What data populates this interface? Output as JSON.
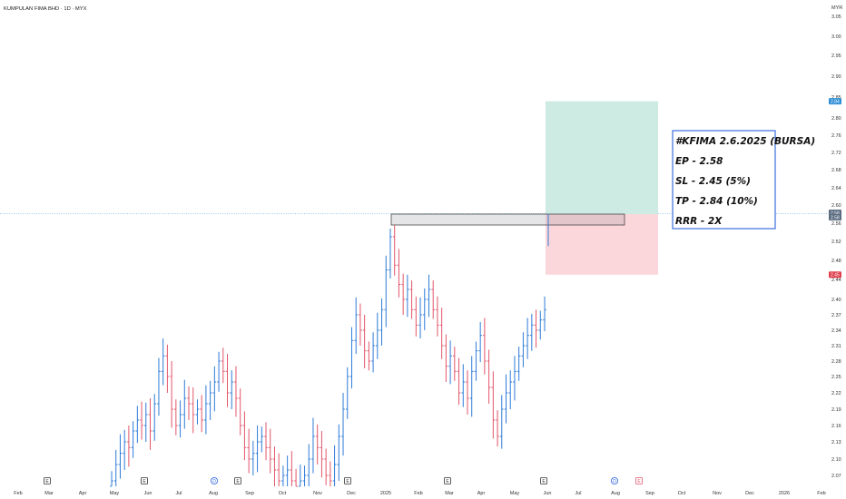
{
  "header": {
    "title": "KUMPULAN FIMA BHD · 1D · MYX"
  },
  "chart_data": {
    "type": "ohlc",
    "currency": "MYR",
    "y_ticks": [
      "3.05",
      "3.00",
      "2.95",
      "2.90",
      "2.85",
      "2.80",
      "2.76",
      "2.72",
      "2.68",
      "2.64",
      "2.60",
      "2.56",
      "2.52",
      "2.48",
      "2.44",
      "2.40",
      "2.37",
      "2.34",
      "2.31",
      "2.28",
      "2.25",
      "2.22",
      "2.19",
      "2.16",
      "2.13",
      "2.10",
      "2.07"
    ],
    "x_ticks": [
      "Feb",
      "Mar",
      "Apr",
      "May",
      "Jun",
      "Jul",
      "Aug",
      "Sep",
      "Oct",
      "Nov",
      "Dec",
      "2025",
      "Feb",
      "Mar",
      "Apr",
      "May",
      "Jun",
      "Jul",
      "Aug",
      "Sep",
      "Oct",
      "Nov",
      "Dec",
      "2026",
      "Feb"
    ],
    "ylim": [
      2.05,
      3.07
    ],
    "price_tags": [
      {
        "label": "2.84",
        "value": 2.84,
        "color": "#2f8fd6"
      },
      {
        "label": "2.58",
        "value": 2.583,
        "color": "#5b6b80"
      },
      {
        "label": "2.58",
        "value": 2.573,
        "color": "#5b6b80"
      },
      {
        "label": "2.45",
        "value": 2.45,
        "color": "#e0404e"
      }
    ],
    "position": {
      "entry": 2.58,
      "stop_loss": 2.45,
      "target": 2.84,
      "target_color": "#cdeae3",
      "stop_color": "#fbd6da"
    },
    "resistance_zone": {
      "top": 2.58,
      "bottom": 2.56,
      "start": "2025-01",
      "end": "2025-08"
    },
    "annotation": {
      "line1": "#KFIMA 2.6.2025 (BURSA)",
      "line2": "EP - 2.58",
      "line3": "SL - 2.45 (5%)",
      "line4": "TP - 2.84 (10%)",
      "line5": "RRR - 2X"
    },
    "events": [
      {
        "type": "E",
        "month": "2024-03"
      },
      {
        "type": "E",
        "month": "2024-06"
      },
      {
        "type": "D",
        "month": "2024-08"
      },
      {
        "type": "E",
        "month": "2024-08"
      },
      {
        "type": "E",
        "month": "2024-12"
      },
      {
        "type": "E",
        "month": "2025-03"
      },
      {
        "type": "E",
        "month": "2025-06"
      },
      {
        "type": "D",
        "month": "2025-08"
      },
      {
        "type": "E",
        "month": "2025-08"
      }
    ],
    "series": [
      {
        "period_start": "2024-05",
        "period_end": "2025-06",
        "closes": [
          2.06,
          2.09,
          2.11,
          2.13,
          2.12,
          2.15,
          2.17,
          2.16,
          2.18,
          2.15,
          2.2,
          2.26,
          2.29,
          2.25,
          2.19,
          2.16,
          2.18,
          2.21,
          2.2,
          2.18,
          2.19,
          2.17,
          2.2,
          2.22,
          2.24,
          2.28,
          2.26,
          2.22,
          2.24,
          2.21,
          2.16,
          2.12,
          2.1,
          2.11,
          2.13,
          2.14,
          2.12,
          2.1,
          2.08,
          2.06,
          2.07,
          2.08,
          2.06,
          2.05,
          2.06,
          2.07,
          2.1,
          2.14,
          2.12,
          2.1,
          2.07,
          2.06,
          2.09,
          2.14,
          2.19,
          2.25,
          2.32,
          2.37,
          2.34,
          2.3,
          2.28,
          2.31,
          2.34,
          2.38,
          2.46,
          2.53,
          2.47,
          2.43,
          2.4,
          2.42,
          2.38,
          2.35,
          2.37,
          2.4,
          2.42,
          2.38,
          2.35,
          2.31,
          2.27,
          2.29,
          2.26,
          2.22,
          2.24,
          2.21,
          2.26,
          2.3,
          2.33,
          2.28,
          2.23,
          2.17,
          2.14,
          2.19,
          2.22,
          2.24,
          2.26,
          2.29,
          2.31,
          2.33,
          2.35,
          2.34,
          2.36,
          2.38
        ]
      }
    ]
  }
}
